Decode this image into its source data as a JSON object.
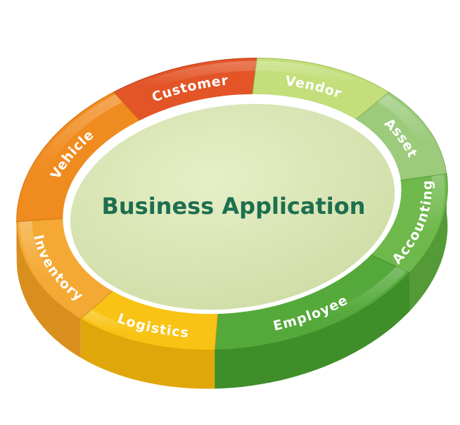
{
  "center": {
    "title": "Business Application"
  },
  "segments": [
    {
      "label": "Customer",
      "color": "#e35427",
      "side": "#b9401c"
    },
    {
      "label": "Vendor",
      "color": "#c3de7a",
      "side": "#9fbd58"
    },
    {
      "label": "Asset",
      "color": "#9ccb7c",
      "side": "#7fb061"
    },
    {
      "label": "Accounting",
      "color": "#6fb84b",
      "side": "#549a36"
    },
    {
      "label": "Employee",
      "color": "#55a93a",
      "side": "#3f8e2a"
    },
    {
      "label": "Logistics",
      "color": "#f9c315",
      "side": "#e0a70a"
    },
    {
      "label": "Inventory",
      "color": "#f4a934",
      "side": "#d98f1e"
    },
    {
      "label": "Vehicle",
      "color": "#f08b1f",
      "side": "#d1720f"
    }
  ],
  "colors": {
    "center_fill": "#dbe6b8",
    "center_rim": "#ffffff",
    "title": "#1d6f4f"
  }
}
